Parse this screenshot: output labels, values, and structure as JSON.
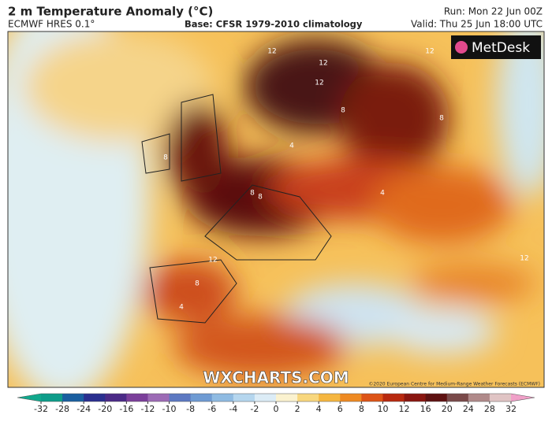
{
  "header": {
    "title": "2 m Temperature Anomaly (°C)",
    "model": "ECMWF HRES 0.1°",
    "base": "Base: CFSR 1979-2010 climatology",
    "run": "Run: Mon 22 Jun 00Z",
    "valid": "Valid: Thu 25 Jun 18:00 UTC"
  },
  "map": {
    "logo": "MetDesk",
    "watermark": "WXCHARTS.COM",
    "copyright": "©2020 European Centre for Medium-Range Weather Forecasts (ECMWF)",
    "contour_labels": [
      12,
      12,
      12,
      12,
      8,
      8,
      4,
      8,
      12,
      8,
      4,
      8,
      12,
      4,
      8
    ]
  },
  "legend": {
    "ticks": [
      -32,
      -28,
      -24,
      -20,
      -16,
      -12,
      -10,
      -8,
      -6,
      -4,
      -2,
      0,
      2,
      4,
      6,
      8,
      10,
      12,
      16,
      20,
      24,
      28,
      32
    ],
    "colors": [
      "#0e9c8a",
      "#1a5fa0",
      "#2a2f8f",
      "#4b2a87",
      "#7b3f9a",
      "#9c6bb5",
      "#5d79c2",
      "#6f9bd3",
      "#8fbbe2",
      "#b5d6ee",
      "#dcecf6",
      "#fbf2cf",
      "#f8d77e",
      "#f5b640",
      "#ee8a22",
      "#dd5417",
      "#b8290f",
      "#8a1610",
      "#5e1212",
      "#7a4a4a",
      "#b08a8a",
      "#e0c4c4"
    ],
    "low_color": "#10a88c",
    "high_color": "#f0a0c8"
  }
}
